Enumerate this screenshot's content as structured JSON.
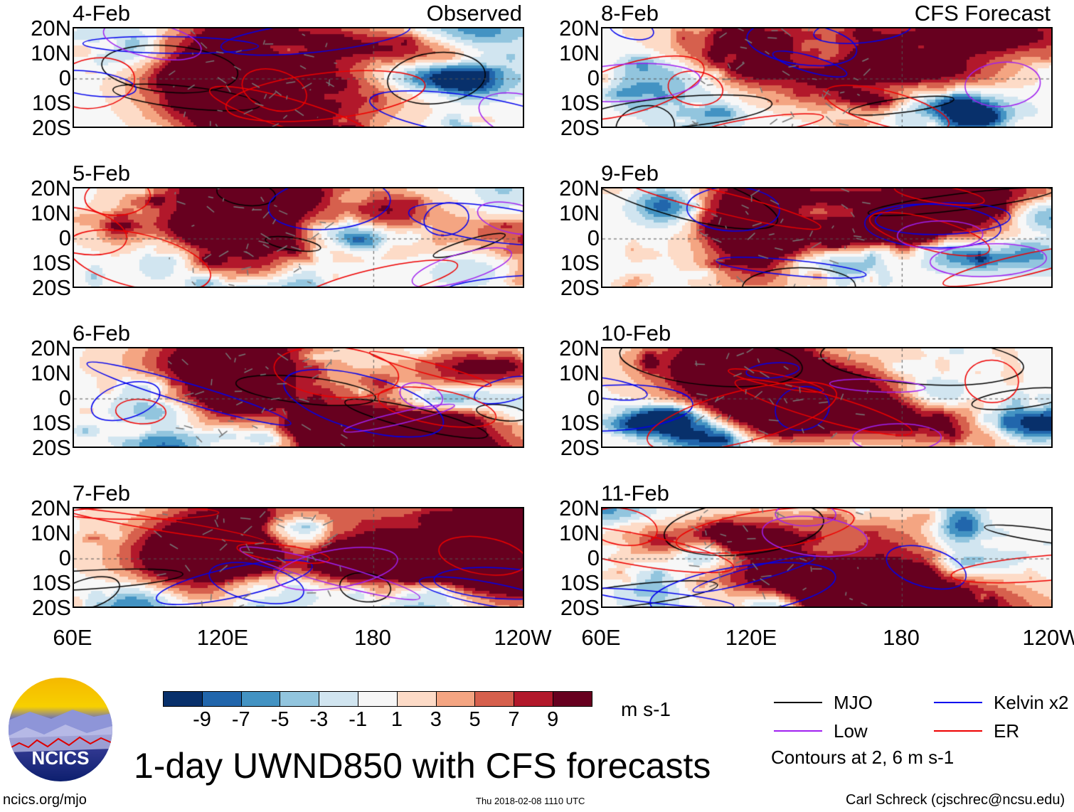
{
  "chart_data": {
    "type": "heatmap",
    "title": "1-day UWND850 with CFS forecasts",
    "variable_units": "m s-1",
    "columns": [
      {
        "label": "Observed",
        "panels": [
          "4-Feb",
          "5-Feb",
          "6-Feb",
          "7-Feb"
        ]
      },
      {
        "label": "CFS Forecast",
        "panels": [
          "8-Feb",
          "9-Feb",
          "10-Feb",
          "11-Feb"
        ]
      }
    ],
    "y_ticks": [
      "20N",
      "10N",
      "0",
      "10S",
      "20S"
    ],
    "x_ticks": [
      "60E",
      "120E",
      "180",
      "120W"
    ],
    "colorbar": {
      "ticks": [
        "-9",
        "-7",
        "-5",
        "-3",
        "-1",
        "1",
        "3",
        "5",
        "7",
        "9"
      ],
      "colors": [
        "#08306b",
        "#2166ac",
        "#4393c3",
        "#92c5de",
        "#d1e5f0",
        "#f7f7f7",
        "#fddbc7",
        "#f4a582",
        "#d6604d",
        "#b2182b",
        "#67001f"
      ]
    },
    "legend": [
      {
        "label": "MJO",
        "color": "#000000"
      },
      {
        "label": "Kelvin x2",
        "color": "#0000ee"
      },
      {
        "label": "Low",
        "color": "#a020f0"
      },
      {
        "label": "ER",
        "color": "#ee0000"
      }
    ],
    "contour_note": "Contours at 2, 6 m s-1"
  },
  "footer": {
    "site": "ncics.org/mjo",
    "timestamp": "Thu 2018-02-08 1110 UTC",
    "credit": "Carl Schreck (cjschrec@ncsu.edu)",
    "logo_text": "NCICS"
  }
}
